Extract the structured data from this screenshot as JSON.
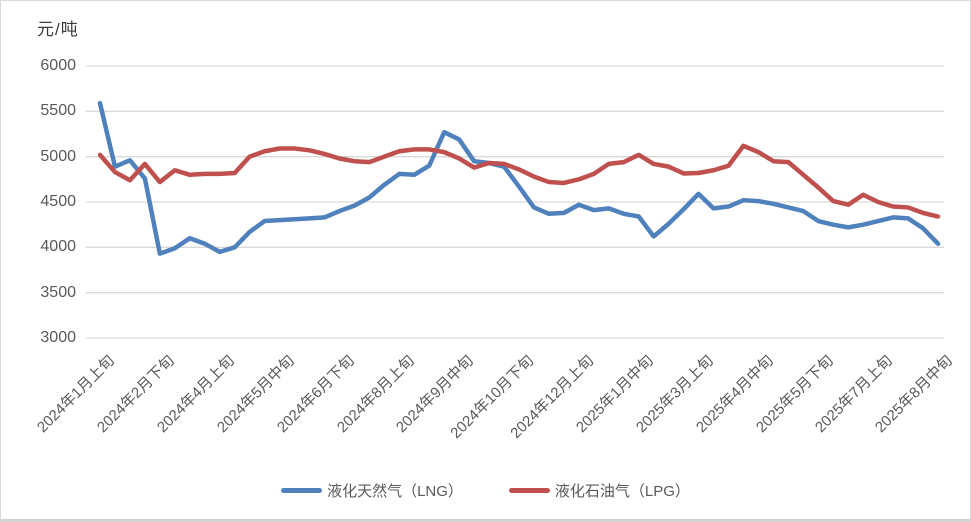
{
  "chart_data": {
    "type": "line",
    "axis_title": "元/吨",
    "n_points": 57,
    "ylim": [
      3000,
      6000
    ],
    "y_ticks": [
      3000,
      3500,
      4000,
      4500,
      5000,
      5500,
      6000
    ],
    "grid": "horizontal",
    "legend_position": "bottom",
    "x_tick_indices": [
      0,
      4,
      8,
      12,
      16,
      20,
      24,
      28,
      32,
      36,
      40,
      44,
      48,
      52,
      56
    ],
    "x_tick_labels": [
      "2024年1月上旬",
      "2024年2月下旬",
      "2024年4月上旬",
      "2024年5月中旬",
      "2024年6月下旬",
      "2024年8月上旬",
      "2024年9月中旬",
      "2024年10月下旬",
      "2024年12月上旬",
      "2025年1月中旬",
      "2025年3月上旬",
      "2025年4月中旬",
      "2025年5月下旬",
      "2025年7月上旬",
      "2025年8月中旬"
    ],
    "series": [
      {
        "name": "液化天然气（LNG）",
        "color": "#4F81BD",
        "values": [
          5590,
          4890,
          4960,
          4760,
          3930,
          3990,
          4100,
          4040,
          3950,
          4000,
          4170,
          4290,
          4300,
          4310,
          4320,
          4330,
          4400,
          4460,
          4550,
          4690,
          4810,
          4800,
          4900,
          5270,
          5190,
          4950,
          4930,
          4890,
          4670,
          4440,
          4370,
          4380,
          4470,
          4410,
          4430,
          4370,
          4340,
          4120,
          4260,
          4420,
          4590,
          4430,
          4450,
          4520,
          4510,
          4480,
          4440,
          4400,
          4290,
          4250,
          4220,
          4250,
          4290,
          4330,
          4320,
          4210,
          4040
        ]
      },
      {
        "name": "液化石油气（LPG）",
        "color": "#C0504D",
        "values": [
          5020,
          4830,
          4740,
          4920,
          4720,
          4850,
          4800,
          4810,
          4810,
          4820,
          5000,
          5060,
          5090,
          5090,
          5070,
          5030,
          4980,
          4950,
          4940,
          5000,
          5060,
          5080,
          5080,
          5050,
          4980,
          4880,
          4930,
          4920,
          4860,
          4780,
          4720,
          4710,
          4750,
          4810,
          4920,
          4940,
          5020,
          4920,
          4890,
          4815,
          4820,
          4850,
          4900,
          5120,
          5050,
          4950,
          4940,
          4800,
          4660,
          4510,
          4470,
          4580,
          4500,
          4450,
          4440,
          4380,
          4340
        ]
      }
    ]
  }
}
